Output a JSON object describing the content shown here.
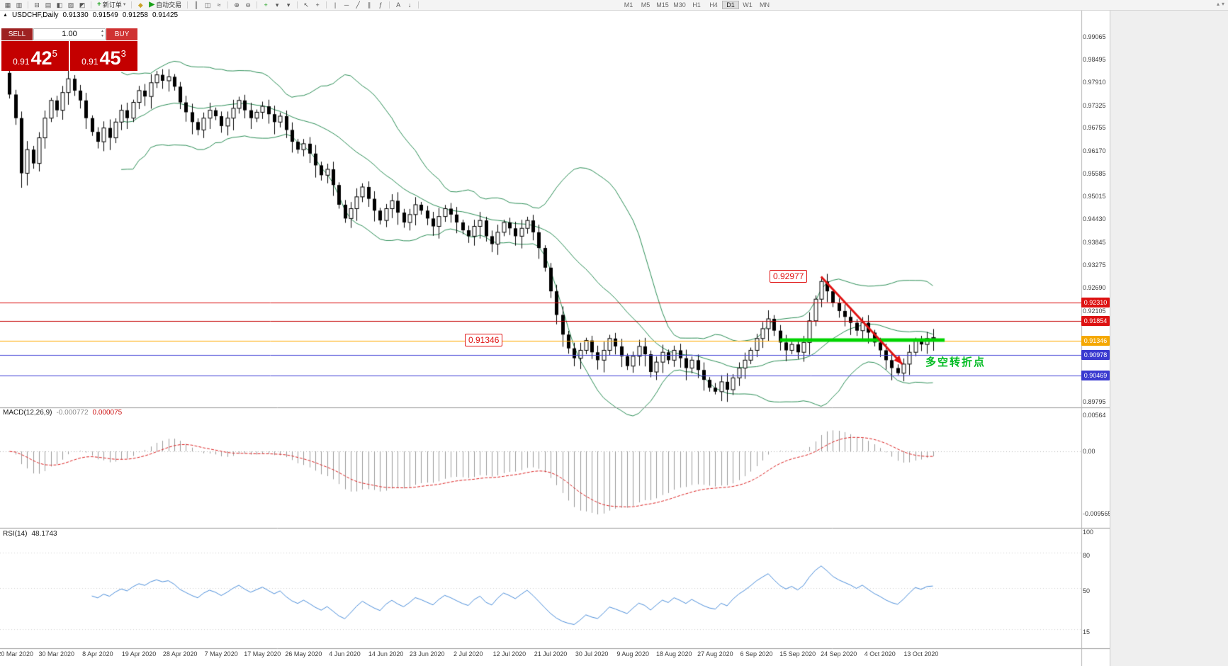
{
  "toolbar": {
    "new_order_label": "新订单",
    "autotrading_label": "自动交易",
    "timeframes": [
      "M1",
      "M5",
      "M15",
      "M30",
      "H1",
      "H4",
      "D1",
      "W1",
      "MN"
    ],
    "active_timeframe": "D1",
    "icons": [
      {
        "name": "new-chart-icon",
        "glyph": "▦"
      },
      {
        "name": "profiles-icon",
        "glyph": "▥"
      },
      {
        "sep": true
      },
      {
        "name": "market-watch-icon",
        "glyph": "⊟"
      },
      {
        "name": "data-window-icon",
        "glyph": "▤"
      },
      {
        "name": "navigator-icon",
        "glyph": "◧"
      },
      {
        "name": "terminal-icon",
        "glyph": "▨"
      },
      {
        "name": "strategy-tester-icon",
        "glyph": "◩"
      },
      {
        "sep": true
      },
      {
        "button": "new_order"
      },
      {
        "sep": true
      },
      {
        "name": "metaeditor-icon",
        "glyph": "◆",
        "color": "#c9a227"
      },
      {
        "button": "autotrading"
      },
      {
        "sep": true
      },
      {
        "name": "bar-chart-icon",
        "glyph": "║"
      },
      {
        "name": "candlestick-icon",
        "glyph": "◫"
      },
      {
        "name": "line-chart-icon",
        "glyph": "≈"
      },
      {
        "sep": true
      },
      {
        "name": "zoom-in-icon",
        "glyph": "⊕"
      },
      {
        "name": "zoom-out-icon",
        "glyph": "⊖"
      },
      {
        "sep": true
      },
      {
        "name": "indicators-icon",
        "glyph": "+",
        "color": "#18a018"
      },
      {
        "name": "periods-icon",
        "glyph": "▾"
      },
      {
        "name": "templates-icon",
        "glyph": "▾"
      },
      {
        "sep": true
      },
      {
        "name": "cursor-icon",
        "glyph": "↖"
      },
      {
        "name": "crosshair-icon",
        "glyph": "+"
      },
      {
        "sep": true
      },
      {
        "name": "vertical-line-icon",
        "glyph": "|"
      },
      {
        "name": "horizontal-line-icon",
        "glyph": "─"
      },
      {
        "name": "trendline-icon",
        "glyph": "╱"
      },
      {
        "name": "channel-icon",
        "glyph": "∥"
      },
      {
        "name": "fibonacci-icon",
        "glyph": "ƒ"
      },
      {
        "sep": true
      },
      {
        "name": "text-tool-icon",
        "glyph": "A"
      },
      {
        "name": "arrows-tool-icon",
        "glyph": "↓"
      },
      {
        "sep": true
      }
    ],
    "corner_icons": [
      {
        "name": "scroll-up-icon",
        "glyph": "▴"
      },
      {
        "name": "scroll-down-icon",
        "glyph": "▾"
      }
    ]
  },
  "header": {
    "symbol": "USDCHF,Daily",
    "open": "0.91330",
    "high": "0.91549",
    "low": "0.91258",
    "close": "0.91425"
  },
  "trade": {
    "sell_label": "SELL",
    "buy_label": "BUY",
    "volume": "1.00",
    "sell_big": "0.91",
    "sell_pips": "42",
    "sell_sup": "5",
    "buy_big": "0.91",
    "buy_pips": "45",
    "buy_sup": "3"
  },
  "indicators": {
    "macd": {
      "label": "MACD(12,26,9)",
      "value1": "-0.000772",
      "value2": "0.000075"
    },
    "rsi": {
      "label": "RSI(14)",
      "value": "48.1743"
    }
  },
  "chart": {
    "price_axis": {
      "labels": [
        "0.99065",
        "0.98495",
        "0.97910",
        "0.97325",
        "0.96755",
        "0.96170",
        "0.95585",
        "0.95015",
        "0.94430",
        "0.93845",
        "0.93275",
        "0.92690",
        "0.92105",
        "0.89795"
      ],
      "badges": [
        {
          "text": "0.92310",
          "color": "#dd1111"
        },
        {
          "text": "0.91854",
          "color": "#dd1111"
        },
        {
          "text": "0.91346",
          "color": "#f5a800"
        },
        {
          "text": "0.90978",
          "color": "#3a3ad0"
        },
        {
          "text": "0.90469",
          "color": "#3a3ad0"
        }
      ],
      "macd_labels": [
        "0.00564",
        "0.00",
        "-0.009565"
      ],
      "rsi_labels": [
        "100",
        "80",
        "50",
        "15"
      ]
    },
    "date_axis": [
      "20 Mar 2020",
      "30 Mar 2020",
      "8 Apr 2020",
      "19 Apr 2020",
      "28 Apr 2020",
      "7 May 2020",
      "17 May 2020",
      "26 May 2020",
      "4 Jun 2020",
      "14 Jun 2020",
      "23 Jun 2020",
      "2 Jul 2020",
      "12 Jul 2020",
      "21 Jul 2020",
      "30 Jul 2020",
      "9 Aug 2020",
      "18 Aug 2020",
      "27 Aug 2020",
      "6 Sep 2020",
      "15 Sep 2020",
      "24 Sep 2020",
      "4 Oct 2020",
      "13 Oct 2020"
    ]
  },
  "levels": [
    {
      "price": 0.9231,
      "color": "#dd1111"
    },
    {
      "price": 0.91854,
      "color": "#c40000"
    },
    {
      "price": 0.91346,
      "color": "#ffaa00"
    },
    {
      "price": 0.90978,
      "color": "#4646d8"
    },
    {
      "price": 0.90469,
      "color": "#4646d8"
    }
  ],
  "annotations": {
    "peak_label": "0.92977",
    "mid_label": "0.91346",
    "turning_text": "多空转折点",
    "green_line": {
      "from_index": 131,
      "to_index": 159,
      "price": 0.9136,
      "color": "#00d400"
    },
    "arrow": {
      "from_index": 138,
      "from_price": 0.9297,
      "to_index": 151.8,
      "to_price": 0.9075,
      "color": "#e01212"
    }
  },
  "chart_data": {
    "type": "candlestick",
    "symbol": "USDCHF",
    "timeframe": "Daily",
    "y_range": [
      0.8965,
      0.9975
    ],
    "closes": [
      0.976,
      0.97,
      0.956,
      0.962,
      0.9585,
      0.965,
      0.97,
      0.9745,
      0.972,
      0.9765,
      0.98,
      0.977,
      0.9745,
      0.97,
      0.9665,
      0.964,
      0.9675,
      0.965,
      0.969,
      0.972,
      0.97,
      0.974,
      0.977,
      0.9755,
      0.979,
      0.981,
      0.9795,
      0.9805,
      0.978,
      0.974,
      0.9715,
      0.969,
      0.967,
      0.97,
      0.972,
      0.9705,
      0.968,
      0.97,
      0.9725,
      0.9745,
      0.972,
      0.97,
      0.9715,
      0.973,
      0.971,
      0.969,
      0.9705,
      0.967,
      0.964,
      0.962,
      0.9635,
      0.961,
      0.958,
      0.9555,
      0.957,
      0.953,
      0.948,
      0.9445,
      0.947,
      0.95,
      0.9525,
      0.9495,
      0.9465,
      0.944,
      0.947,
      0.949,
      0.946,
      0.9435,
      0.9455,
      0.948,
      0.9465,
      0.9445,
      0.9425,
      0.945,
      0.947,
      0.9455,
      0.9435,
      0.9415,
      0.94,
      0.9425,
      0.944,
      0.94,
      0.938,
      0.941,
      0.9435,
      0.942,
      0.94,
      0.942,
      0.944,
      0.941,
      0.937,
      0.932,
      0.926,
      0.92,
      0.915,
      0.9115,
      0.909,
      0.911,
      0.9135,
      0.9105,
      0.9085,
      0.911,
      0.914,
      0.912,
      0.9095,
      0.907,
      0.9095,
      0.912,
      0.91,
      0.9055,
      0.908,
      0.9105,
      0.9085,
      0.911,
      0.909,
      0.9065,
      0.9085,
      0.906,
      0.9035,
      0.9015,
      0.9005,
      0.903,
      0.901,
      0.904,
      0.9065,
      0.9085,
      0.911,
      0.914,
      0.9165,
      0.919,
      0.916,
      0.913,
      0.911,
      0.9125,
      0.9105,
      0.913,
      0.9185,
      0.924,
      0.9285,
      0.926,
      0.923,
      0.921,
      0.9195,
      0.918,
      0.916,
      0.918,
      0.9155,
      0.913,
      0.911,
      0.9085,
      0.9065,
      0.9052,
      0.9075,
      0.9105,
      0.9135,
      0.9125,
      0.914,
      0.91425
    ],
    "special_bars": {
      "0": {
        "open": 0.9815,
        "high": 0.9825
      },
      "2": {
        "low": 0.9523
      },
      "25": {
        "high": 0.982
      },
      "57": {
        "low": 0.9434
      },
      "120": {
        "low": 0.8998
      },
      "138": {
        "high": 0.92977
      },
      "151": {
        "low": 0.90469
      }
    },
    "indicators": {
      "bollinger": {
        "period": 20,
        "deviation": 2
      },
      "macd": {
        "fast": 12,
        "slow": 26,
        "signal": 9
      },
      "rsi": {
        "period": 14
      }
    }
  }
}
